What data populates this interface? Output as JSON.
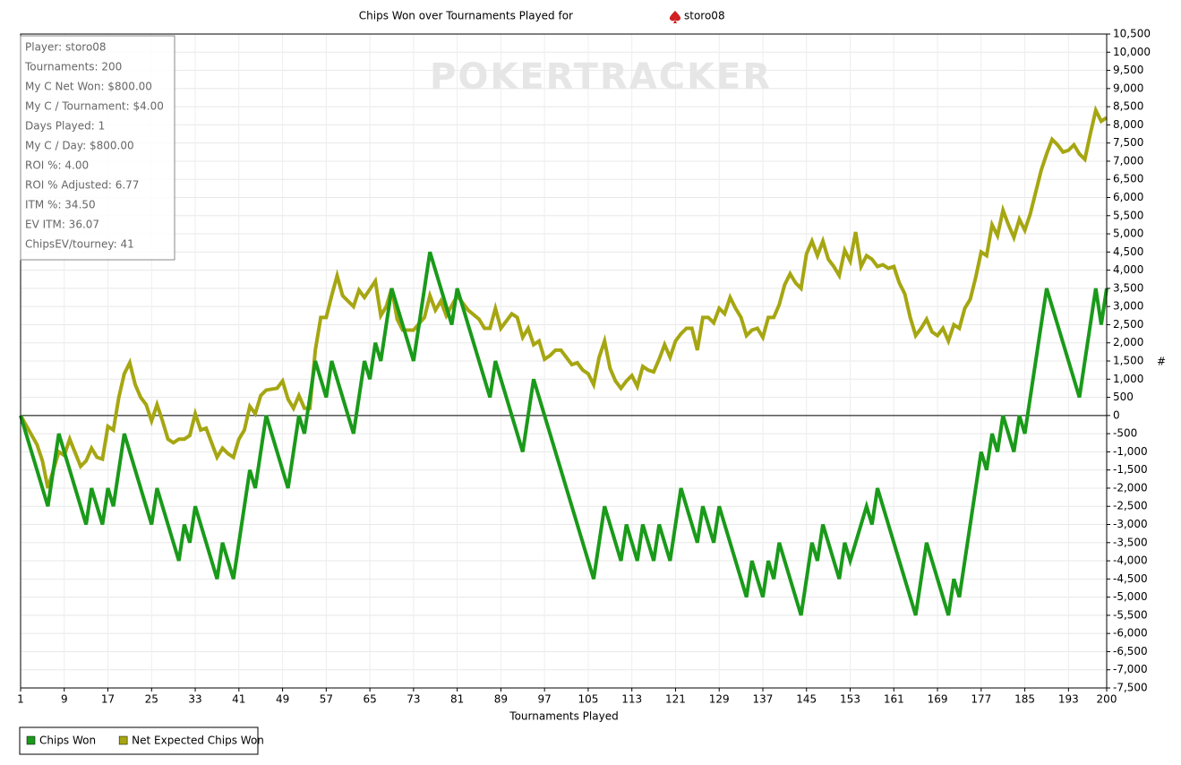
{
  "chart_data": {
    "type": "line",
    "title": "Chips Won over Tournaments Played for",
    "player": "storo08",
    "watermark": "POKERTRACKER",
    "xlabel": "Tournaments Played",
    "ylabel": "#",
    "info": [
      "Player: storo08",
      "Tournaments: 200",
      "My C Net Won: $800.00",
      "My C / Tournament: $4.00",
      "Days Played: 1",
      "My C / Day: $800.00",
      "ROI %: 4.00",
      "ROI % Adjusted: 6.77",
      "ITM %: 34.50",
      "EV ITM: 36.07",
      "ChipsEV/tourney: 41"
    ],
    "xlim": [
      1,
      200
    ],
    "xticks": [
      1,
      9,
      17,
      25,
      33,
      41,
      49,
      57,
      65,
      73,
      81,
      89,
      97,
      105,
      113,
      121,
      129,
      137,
      145,
      153,
      161,
      169,
      177,
      185,
      193,
      200
    ],
    "ylim": [
      -7500,
      10500
    ],
    "yticks": [
      {
        "value": -7500,
        "label": "-7,500"
      },
      {
        "value": -7000,
        "label": "-7,000"
      },
      {
        "value": -6500,
        "label": "-6,500"
      },
      {
        "value": -6000,
        "label": "-6,000"
      },
      {
        "value": -5500,
        "label": "-5,500"
      },
      {
        "value": -5000,
        "label": "-5,000"
      },
      {
        "value": -4500,
        "label": "-4,500"
      },
      {
        "value": -4000,
        "label": "-4,000"
      },
      {
        "value": -3500,
        "label": "-3,500"
      },
      {
        "value": -3000,
        "label": "-3,000"
      },
      {
        "value": -2500,
        "label": "-2,500"
      },
      {
        "value": -2000,
        "label": "-2,000"
      },
      {
        "value": -1500,
        "label": "-1,500"
      },
      {
        "value": -1000,
        "label": "-1,000"
      },
      -500,
      0,
      500,
      {
        "value": 1000,
        "label": "1,000"
      },
      {
        "value": 1500,
        "label": "1,500"
      },
      {
        "value": 2000,
        "label": "2,000"
      },
      {
        "value": 2500,
        "label": "2,500"
      },
      {
        "value": 3000,
        "label": "3,000"
      },
      {
        "value": 3500,
        "label": "3,500"
      },
      {
        "value": 4000,
        "label": "4,000"
      },
      {
        "value": 4500,
        "label": "4,500"
      },
      {
        "value": 5000,
        "label": "5,000"
      },
      {
        "value": 5500,
        "label": "5,500"
      },
      {
        "value": 6000,
        "label": "6,000"
      },
      {
        "value": 6500,
        "label": "6,500"
      },
      {
        "value": 7000,
        "label": "7,000"
      },
      {
        "value": 7500,
        "label": "7,500"
      },
      {
        "value": 8000,
        "label": "8,000"
      },
      {
        "value": 8500,
        "label": "8,500"
      },
      {
        "value": 9000,
        "label": "9,000"
      },
      {
        "value": 9500,
        "label": "9,500"
      },
      {
        "value": 10000,
        "label": "10,000"
      },
      {
        "value": 10500,
        "label": "10,500"
      }
    ],
    "grid": true,
    "series": [
      {
        "name": "Chips Won",
        "color": "#1a9a1a",
        "x": [
          1,
          6,
          8,
          13,
          14,
          16,
          17,
          18,
          20,
          25,
          26,
          30,
          31,
          32,
          33,
          37,
          38,
          40,
          43,
          44,
          46,
          50,
          52,
          53,
          55,
          57,
          58,
          62,
          64,
          65,
          66,
          67,
          69,
          73,
          76,
          80,
          81,
          87,
          88,
          93,
          95,
          106,
          108,
          111,
          112,
          114,
          115,
          117,
          118,
          120,
          122,
          125,
          126,
          128,
          129,
          134,
          135,
          137,
          138,
          139,
          140,
          144,
          146,
          147,
          148,
          151,
          152,
          153,
          155,
          156,
          157,
          158,
          165,
          167,
          171,
          172,
          173,
          177,
          178,
          179,
          180,
          181,
          183,
          184,
          185,
          189,
          195,
          198,
          199,
          200
        ],
        "values": [
          0,
          -2500,
          -500,
          -3000,
          -2000,
          -3000,
          -2000,
          -2500,
          -500,
          -3000,
          -2000,
          -4000,
          -3000,
          -3500,
          -2500,
          -4500,
          -3500,
          -4500,
          -1500,
          -2000,
          0,
          -2000,
          0,
          -500,
          1500,
          500,
          1500,
          -500,
          1500,
          1000,
          2000,
          1500,
          3500,
          1500,
          4500,
          2500,
          3500,
          500,
          1500,
          -1000,
          1000,
          -4500,
          -2500,
          -4000,
          -3000,
          -4000,
          -3000,
          -4000,
          -3000,
          -4000,
          -2000,
          -3500,
          -2500,
          -3500,
          -2500,
          -5000,
          -4000,
          -5000,
          -4000,
          -4500,
          -3500,
          -5500,
          -3500,
          -4000,
          -3000,
          -4500,
          -3500,
          -4000,
          -3000,
          -2500,
          -3000,
          -2000,
          -5500,
          -3500,
          -5500,
          -4500,
          -5000,
          -1000,
          -1500,
          -500,
          -1000,
          0,
          -1000,
          0,
          -500,
          3500,
          500,
          3500,
          2500,
          3500
        ]
      },
      {
        "name": "Net Expected Chips Won",
        "color": "#a6a612",
        "x": [
          1,
          4,
          5,
          6,
          8,
          9,
          10,
          12,
          13,
          14,
          15,
          16,
          17,
          18,
          19,
          20,
          21,
          22,
          23,
          24,
          25,
          26,
          27,
          28,
          29,
          30,
          31,
          32,
          33,
          34,
          35,
          36,
          37,
          38,
          39,
          40,
          41,
          42,
          43,
          44,
          45,
          46,
          48,
          49,
          50,
          51,
          52,
          53,
          54,
          55,
          56,
          57,
          58,
          59,
          60,
          62,
          63,
          64,
          66,
          67,
          68,
          69,
          70,
          71,
          73,
          75,
          76,
          77,
          78,
          79,
          81,
          83,
          85,
          86,
          87,
          88,
          89,
          91,
          92,
          93,
          94,
          95,
          96,
          97,
          98,
          99,
          100,
          101,
          102,
          103,
          104,
          105,
          106,
          107,
          108,
          109,
          110,
          111,
          112,
          113,
          114,
          115,
          116,
          117,
          118,
          119,
          120,
          121,
          122,
          123,
          124,
          125,
          126,
          127,
          128,
          129,
          130,
          131,
          132,
          133,
          134,
          135,
          136,
          137,
          138,
          139,
          140,
          141,
          142,
          143,
          144,
          145,
          146,
          147,
          148,
          149,
          150,
          151,
          152,
          153,
          154,
          155,
          156,
          157,
          158,
          159,
          160,
          161,
          162,
          163,
          164,
          165,
          166,
          167,
          168,
          169,
          170,
          171,
          172,
          173,
          174,
          175,
          176,
          177,
          178,
          179,
          180,
          181,
          182,
          183,
          184,
          185,
          186,
          187,
          188,
          189,
          190,
          191,
          192,
          193,
          194,
          195,
          196,
          197,
          198,
          199,
          200
        ],
        "values": [
          0,
          -800,
          -1250,
          -2000,
          -1000,
          -1100,
          -650,
          -1400,
          -1250,
          -900,
          -1150,
          -1200,
          -300,
          -400,
          500,
          1150,
          1450,
          850,
          500,
          300,
          -150,
          300,
          -150,
          -650,
          -750,
          -650,
          -650,
          -550,
          50,
          -400,
          -350,
          -750,
          -1150,
          -900,
          -1050,
          -1150,
          -650,
          -400,
          250,
          50,
          550,
          700,
          750,
          950,
          450,
          200,
          550,
          200,
          200,
          1800,
          2700,
          2700,
          3300,
          3850,
          3300,
          3000,
          3450,
          3250,
          3700,
          2750,
          3000,
          3500,
          2650,
          2350,
          2350,
          2700,
          3300,
          2900,
          3150,
          2750,
          3300,
          2900,
          2650,
          2400,
          2400,
          2950,
          2400,
          2800,
          2700,
          2150,
          2400,
          1950,
          2050,
          1550,
          1650,
          1800,
          1800,
          1600,
          1400,
          1450,
          1250,
          1150,
          850,
          1600,
          2050,
          1300,
          950,
          750,
          950,
          1100,
          800,
          1350,
          1250,
          1200,
          1550,
          1950,
          1600,
          2050,
          2250,
          2400,
          2400,
          1800,
          2700,
          2700,
          2550,
          2950,
          2800,
          3250,
          2950,
          2700,
          2200,
          2350,
          2400,
          2150,
          2700,
          2700,
          3050,
          3600,
          3900,
          3650,
          3500,
          4450,
          4800,
          4400,
          4800,
          4300,
          4100,
          3850,
          4550,
          4250,
          5050,
          4100,
          4400,
          4300,
          4100,
          4150,
          4050,
          4100,
          3650,
          3350,
          2700,
          2200,
          2400,
          2650,
          2300,
          2200,
          2400,
          2050,
          2500,
          2400,
          2950,
          3200,
          3800,
          4500,
          4400,
          5250,
          4950,
          5650,
          5250,
          4900,
          5400,
          5100,
          5550,
          6150,
          6750,
          7200,
          7600,
          7450,
          7250,
          7300,
          7450,
          7200,
          7050,
          7750,
          8400,
          8100,
          8200
        ]
      }
    ]
  }
}
